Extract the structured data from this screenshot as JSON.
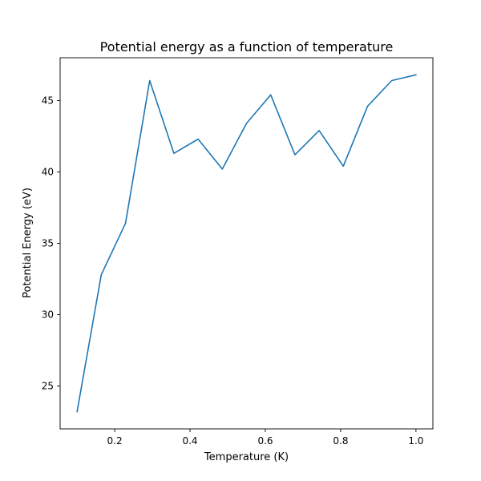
{
  "chart_data": {
    "type": "line",
    "title": "Potential energy as a function of temperature",
    "xlabel": "Temperature (K)",
    "ylabel": "Potential Energy (eV)",
    "xlim": [
      0.055,
      1.045
    ],
    "ylim": [
      22.0,
      48.0
    ],
    "xticks": [
      0.2,
      0.4,
      0.6,
      0.8,
      1.0
    ],
    "xtick_labels": [
      "0.2",
      "0.4",
      "0.6",
      "0.8",
      "1.0"
    ],
    "yticks": [
      25,
      30,
      35,
      40,
      45
    ],
    "ytick_labels": [
      "25",
      "30",
      "35",
      "40",
      "45"
    ],
    "grid": false,
    "legend": "none",
    "series": [
      {
        "color": "#1f77b4",
        "x": [
          0.1,
          0.1643,
          0.2286,
          0.2929,
          0.3571,
          0.4214,
          0.4857,
          0.55,
          0.6143,
          0.6786,
          0.7429,
          0.8071,
          0.8714,
          0.9357,
          1.0
        ],
        "y": [
          23.2,
          32.8,
          36.4,
          46.4,
          41.3,
          42.3,
          40.2,
          43.4,
          45.4,
          41.2,
          42.9,
          40.4,
          44.6,
          46.4,
          46.8
        ]
      }
    ]
  }
}
